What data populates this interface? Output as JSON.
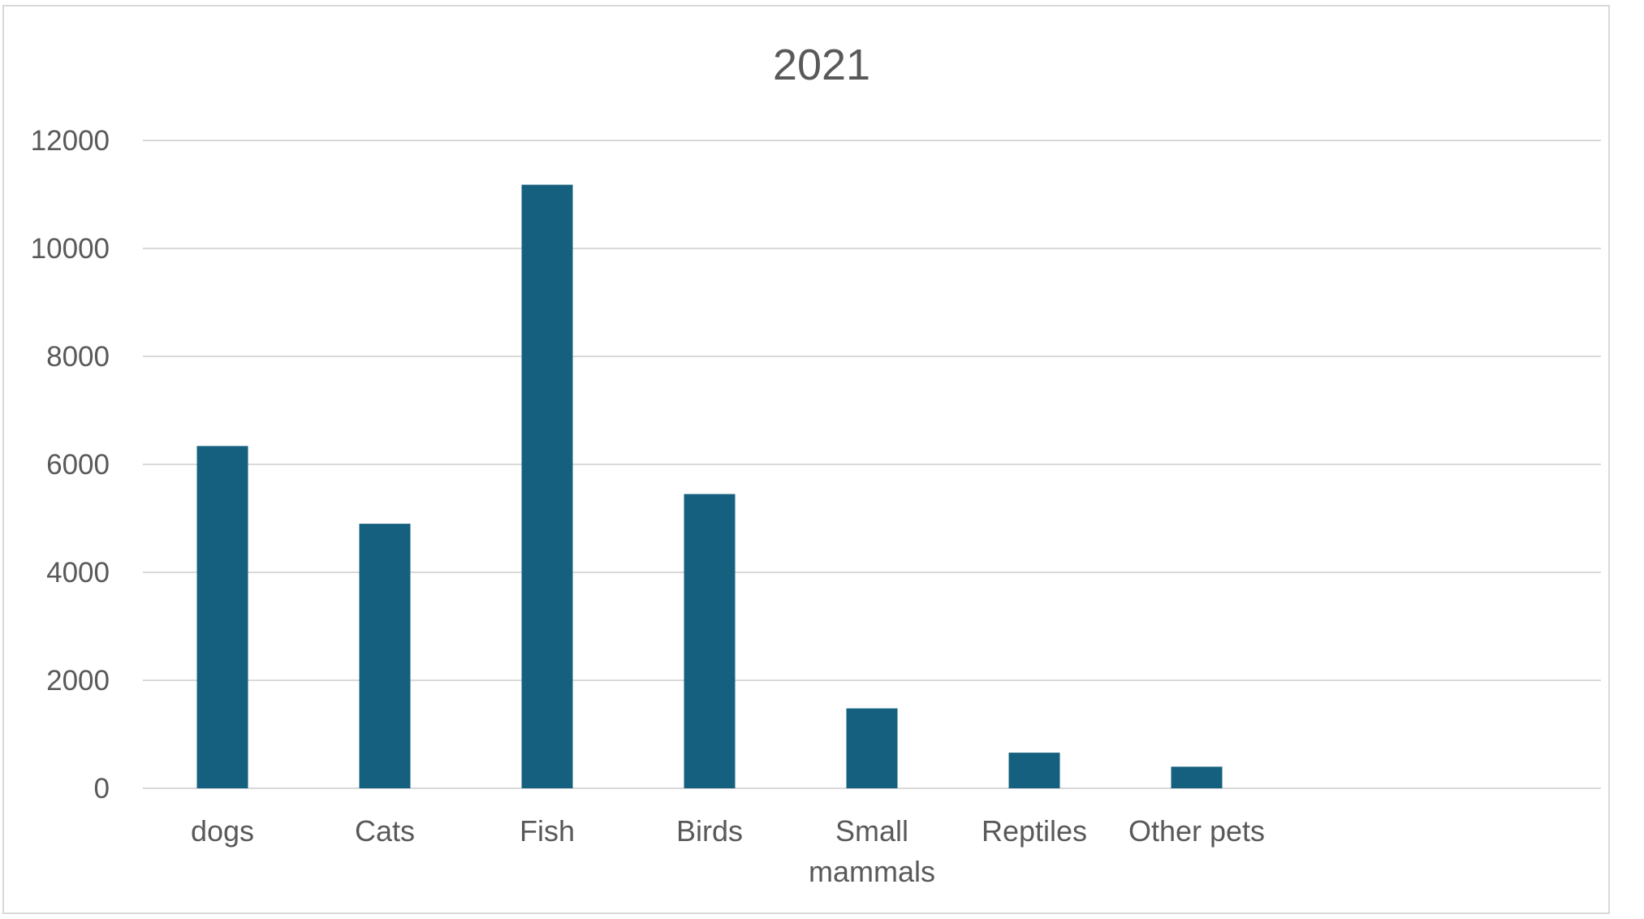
{
  "chart_data": {
    "type": "bar",
    "title": "2021",
    "xlabel": "",
    "ylabel": "",
    "categories": [
      "dogs",
      "Cats",
      "Fish",
      "Birds",
      "Small mammals",
      "Reptiles",
      "Other pets"
    ],
    "values": [
      6340,
      4900,
      11180,
      5450,
      1480,
      660,
      400
    ],
    "ylim": [
      0,
      12000
    ],
    "yticks": [
      "0",
      "2000",
      "4000",
      "6000",
      "8000",
      "10000",
      "12000"
    ],
    "grid": true,
    "legend": "none",
    "colors": {
      "bar": "#16607f",
      "grid": "#d9d9d9",
      "text": "#595959",
      "border": "#d9d9d9"
    }
  }
}
